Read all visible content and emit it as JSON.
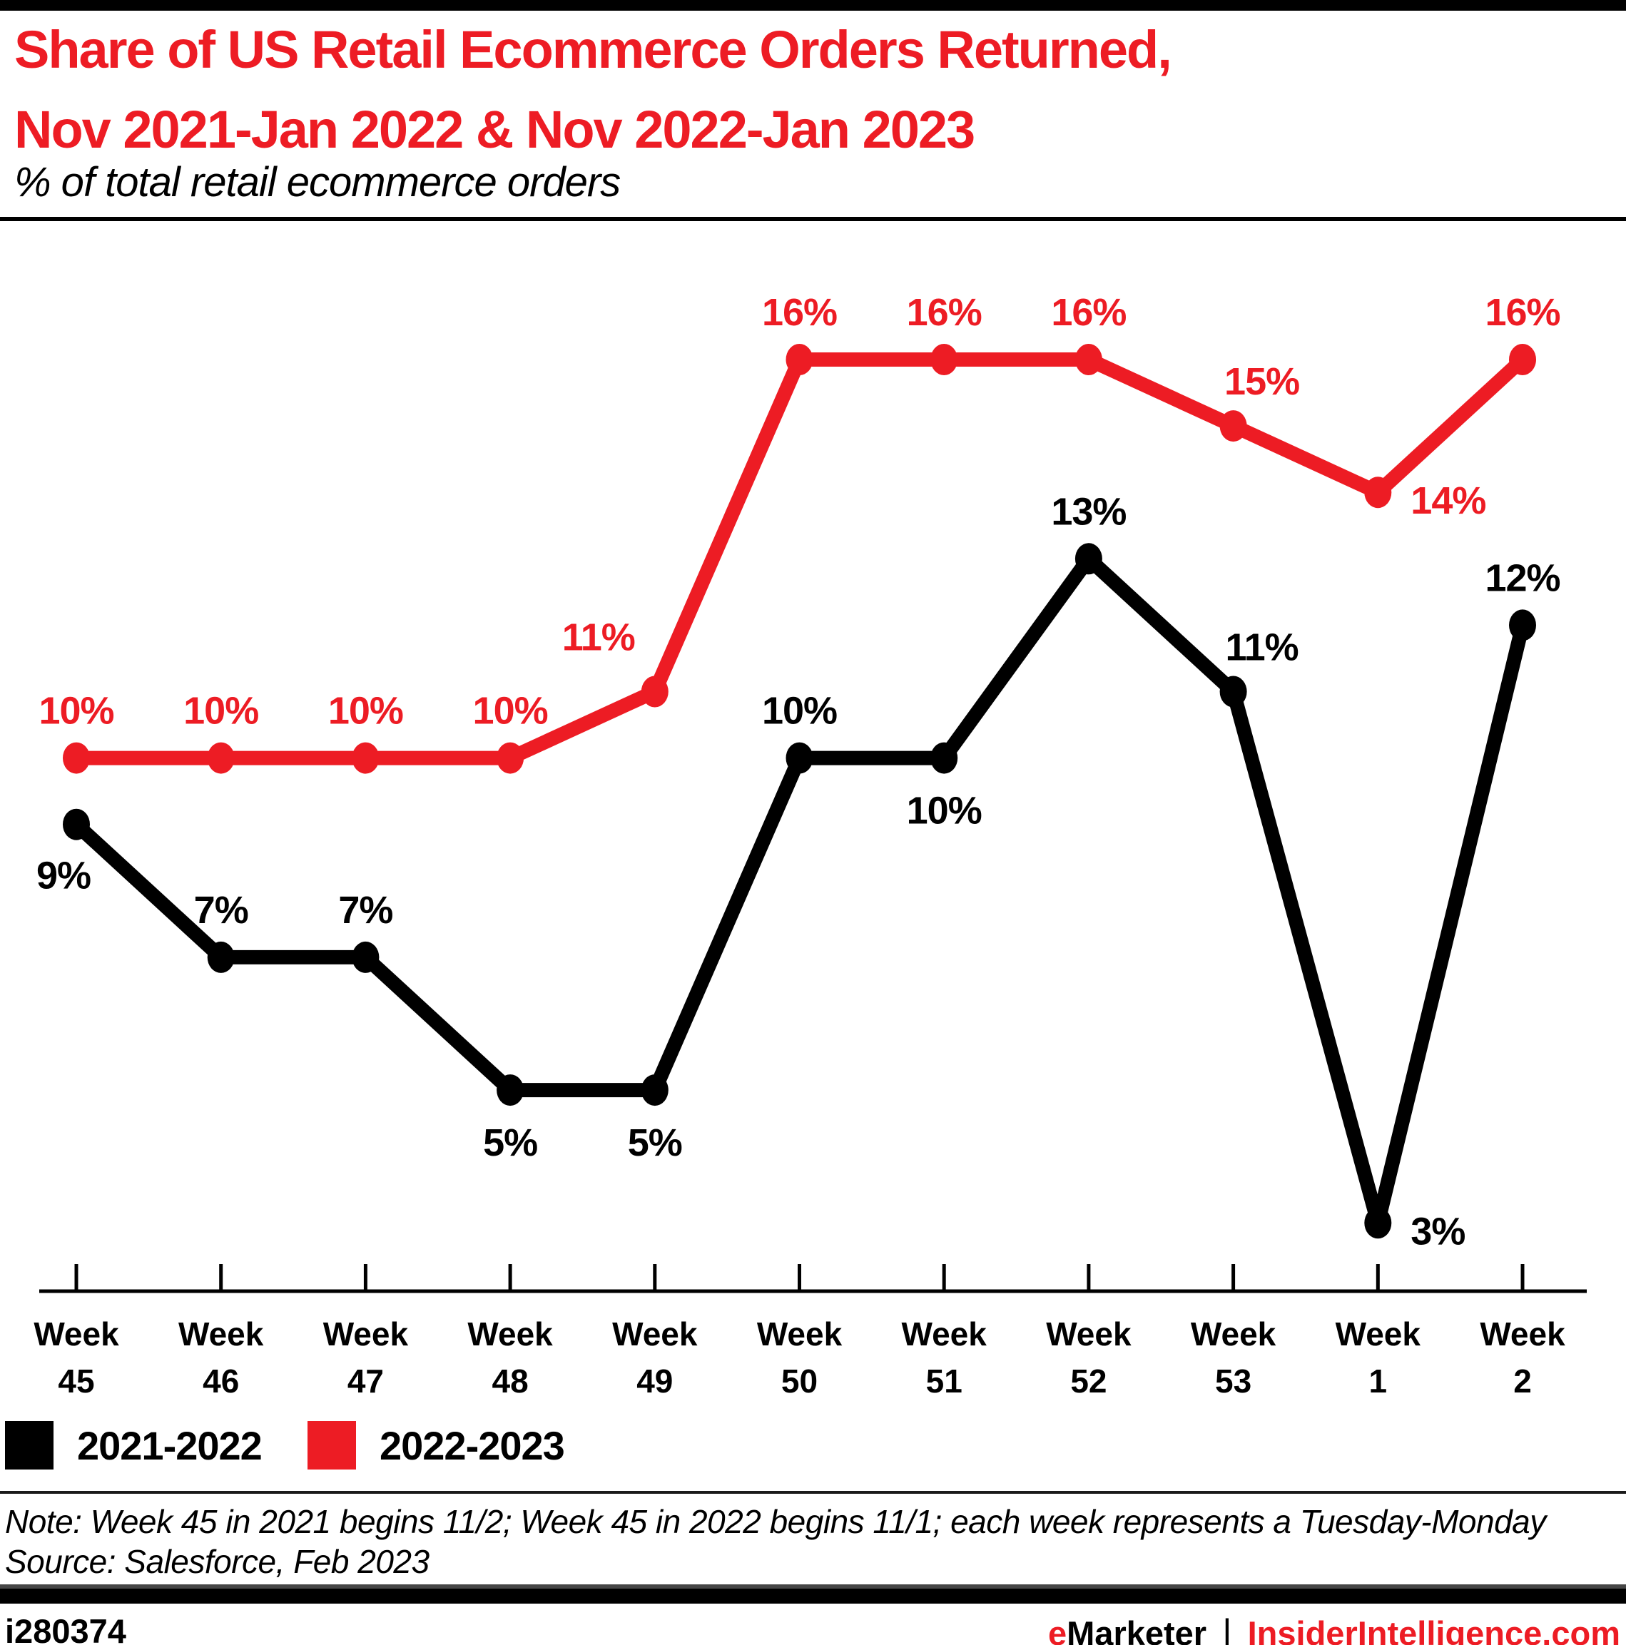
{
  "header": {
    "title_line1": "Share of US Retail Ecommerce Orders Returned,",
    "title_line2": "Nov 2021-Jan 2022 & Nov 2022-Jan 2023",
    "subtitle": "% of total retail ecommerce orders"
  },
  "colors": {
    "accent_red": "#ed1c24",
    "black": "#000000"
  },
  "chart_data": {
    "type": "line",
    "title": "Share of US Retail Ecommerce Orders Returned, Nov 2021-Jan 2022 & Nov 2022-Jan 2023",
    "subtitle": "% of total retail ecommerce orders",
    "x_label_prefix": "Week",
    "categories": [
      "45",
      "46",
      "47",
      "48",
      "49",
      "50",
      "51",
      "52",
      "53",
      "1",
      "2"
    ],
    "unit": "%",
    "ylim": [
      3,
      16
    ],
    "grid": false,
    "legend_position": "bottom",
    "series": [
      {
        "name": "2021-2022",
        "color": "#000000",
        "values": [
          9,
          7,
          7,
          5,
          5,
          10,
          10,
          13,
          11,
          3,
          12
        ],
        "label_positions": [
          "below-left",
          "above",
          "above",
          "below",
          "below",
          "above",
          "below",
          "above",
          "above-right",
          "right",
          "above"
        ]
      },
      {
        "name": "2022-2023",
        "color": "#ed1c24",
        "values": [
          10,
          10,
          10,
          10,
          11,
          16,
          16,
          16,
          15,
          14,
          16
        ],
        "label_positions": [
          "above",
          "above",
          "above",
          "above",
          "above-left",
          "above",
          "above",
          "above",
          "above-right",
          "right",
          "above"
        ]
      }
    ]
  },
  "legend": {
    "items": [
      {
        "label": "2021-2022",
        "color": "#000000"
      },
      {
        "label": "2022-2023",
        "color": "#ed1c24"
      }
    ]
  },
  "note": "Note: Week 45 in 2021 begins 11/2; Week 45 in 2022 begins 11/1; each week represents a Tuesday-Monday",
  "source": "Source: Salesforce, Feb 2023",
  "footer": {
    "chart_id": "i280374",
    "brand_e": "e",
    "brand_rest": "Marketer",
    "separator": "|",
    "site": "InsiderIntelligence.com"
  }
}
